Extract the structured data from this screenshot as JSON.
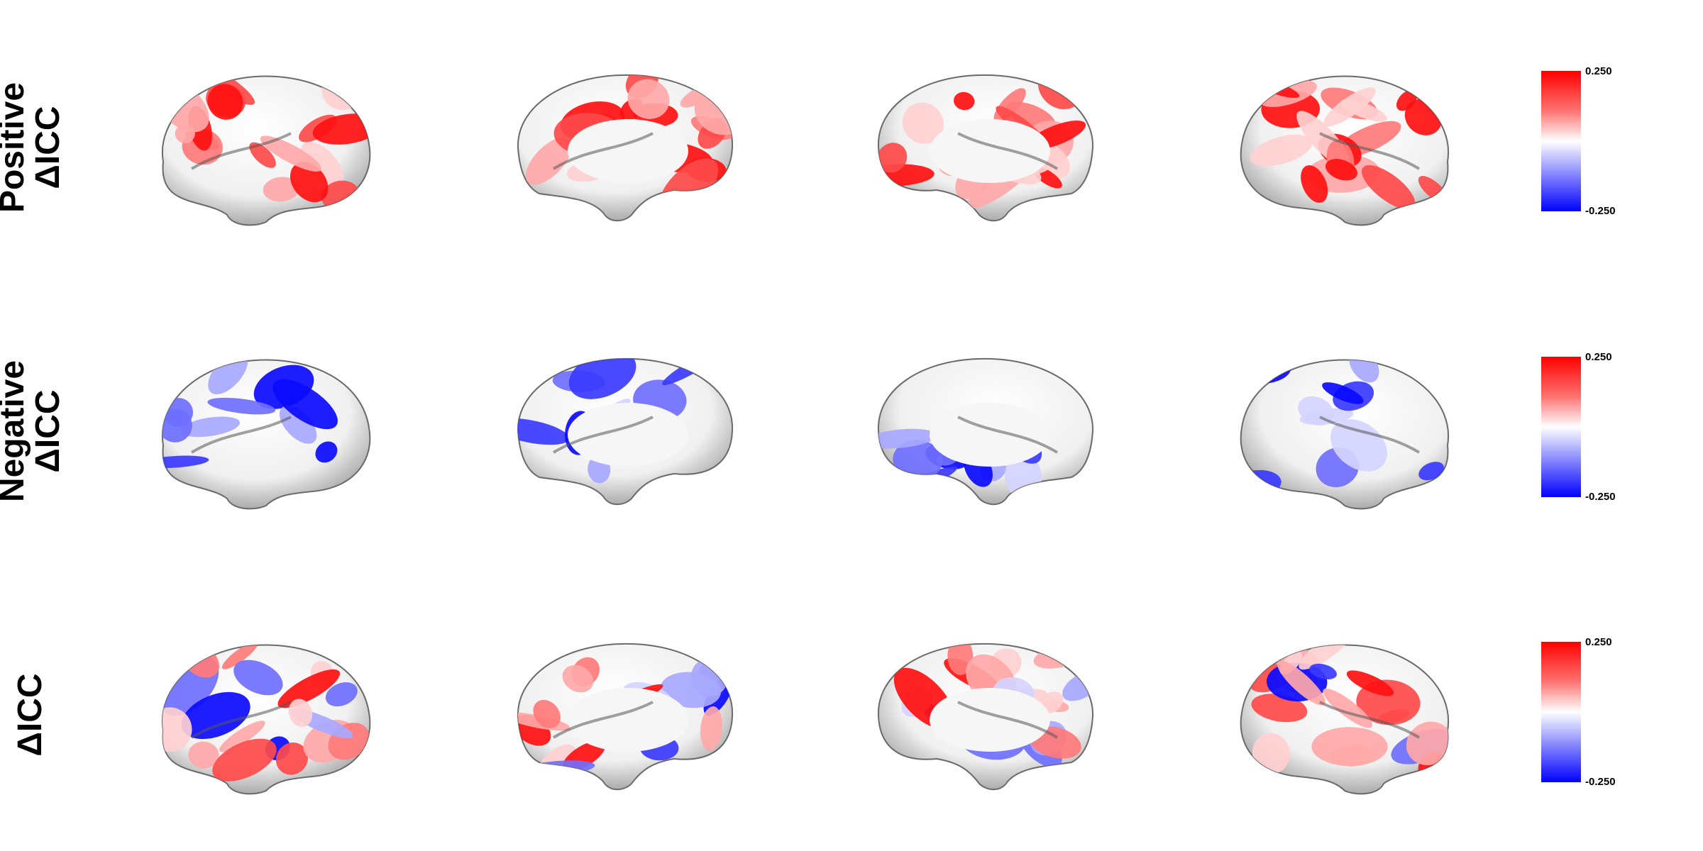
{
  "rows": [
    {
      "label_line1": "Positive",
      "label_line2": "ΔICC",
      "colorbar": {
        "max": "0.250",
        "min": "-0.250"
      }
    },
    {
      "label_line1": "Negative",
      "label_line2": "ΔICC",
      "colorbar": {
        "max": "0.250",
        "min": "-0.250"
      }
    },
    {
      "label_line1": "",
      "label_line2": "ΔICC",
      "colorbar": {
        "max": "0.250",
        "min": "-0.250"
      }
    }
  ],
  "views": [
    "lateral-left",
    "medial-left",
    "medial-right",
    "lateral-right"
  ],
  "colors": {
    "positive": "#ff0000",
    "negative": "#0000ff",
    "neutral": "#ffffff"
  }
}
